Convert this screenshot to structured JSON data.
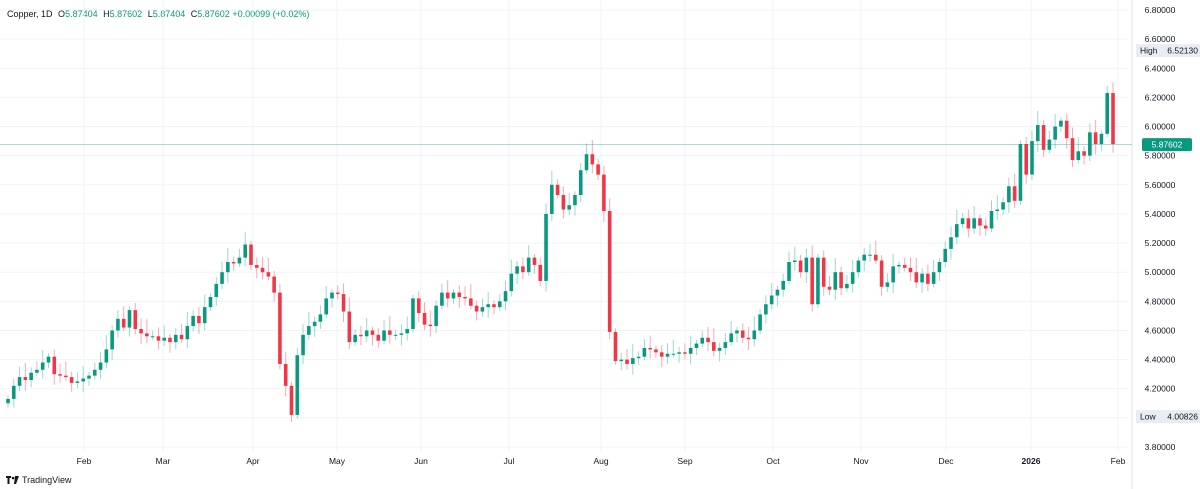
{
  "legend": {
    "symbol": "Copper, 1D",
    "open_label": "O",
    "open": "5.87404",
    "high_label": "H",
    "high": "5.87602",
    "low_label": "L",
    "low": "5.87404",
    "close_label": "C",
    "close": "5.87602",
    "change": "+0.00099 (+0.02%)"
  },
  "branding": "TradingView",
  "colors": {
    "up": "#089981",
    "down": "#f23645",
    "wick_up": "#9cd9c9",
    "wick_down": "#f7a9b0",
    "grid": "#f0f3fa",
    "price_line": "#089981",
    "marker_bg": "#e9ecf2"
  },
  "chart_data": {
    "type": "candlestick",
    "title": "Copper, 1D",
    "x_ticks": [
      "Feb",
      "Mar",
      "Apr",
      "May",
      "Jun",
      "Jul",
      "Aug",
      "Sep",
      "Oct",
      "Nov",
      "Dec",
      "2026",
      "Feb"
    ],
    "y_ticks": [
      "3.80000",
      "4.00000",
      "4.20000",
      "4.40000",
      "4.60000",
      "4.80000",
      "5.00000",
      "5.20000",
      "5.40000",
      "5.60000",
      "5.80000",
      "6.00000",
      "6.20000",
      "6.40000",
      "6.60000",
      "6.80000"
    ],
    "ylim": [
      3.78,
      6.83
    ],
    "grid": true,
    "high_marker": {
      "label": "High",
      "value": "6.52130"
    },
    "low_marker": {
      "label": "Low",
      "value": "4.00826"
    },
    "last_price": {
      "value": "5.87602",
      "level": 5.87602
    },
    "closes": [
      4.13,
      4.22,
      4.28,
      4.26,
      4.31,
      4.33,
      4.38,
      4.42,
      4.3,
      4.29,
      4.28,
      4.24,
      4.25,
      4.27,
      4.29,
      4.33,
      4.38,
      4.47,
      4.6,
      4.68,
      4.62,
      4.74,
      4.61,
      4.58,
      4.56,
      4.56,
      4.53,
      4.55,
      4.52,
      4.57,
      4.54,
      4.63,
      4.7,
      4.65,
      4.76,
      4.83,
      4.92,
      5.0,
      5.07,
      5.06,
      5.1,
      5.19,
      5.05,
      5.03,
      5.0,
      4.97,
      4.86,
      4.37,
      4.22,
      4.02,
      4.43,
      4.57,
      4.63,
      4.66,
      4.71,
      4.82,
      4.86,
      4.85,
      4.73,
      4.52,
      4.57,
      4.56,
      4.6,
      4.57,
      4.53,
      4.6,
      4.57,
      4.57,
      4.58,
      4.61,
      4.82,
      4.72,
      4.64,
      4.63,
      4.77,
      4.86,
      4.82,
      4.86,
      4.83,
      4.82,
      4.77,
      4.73,
      4.76,
      4.78,
      4.76,
      4.8,
      4.87,
      4.99,
      5.04,
      5.0,
      5.1,
      5.05,
      4.94,
      5.4,
      5.6,
      5.53,
      5.43,
      5.46,
      5.53,
      5.7,
      5.81,
      5.74,
      5.67,
      5.42,
      4.59,
      4.39,
      4.4,
      4.37,
      4.41,
      4.42,
      4.48,
      4.47,
      4.45,
      4.42,
      4.44,
      4.44,
      4.45,
      4.44,
      4.48,
      4.51,
      4.55,
      4.52,
      4.46,
      4.48,
      4.52,
      4.58,
      4.6,
      4.55,
      4.54,
      4.6,
      4.71,
      4.78,
      4.84,
      4.88,
      4.94,
      5.07,
      5.08,
      5.0,
      5.1,
      4.78,
      5.1,
      4.9,
      4.88,
      5.0,
      4.89,
      4.92,
      5.0,
      5.08,
      5.12,
      5.12,
      5.08,
      4.9,
      4.93,
      5.04,
      5.05,
      5.03,
      5.0,
      4.93,
      4.99,
      4.92,
      5.0,
      5.07,
      5.16,
      5.24,
      5.33,
      5.37,
      5.3,
      5.37,
      5.32,
      5.3,
      5.42,
      5.43,
      5.48,
      5.59,
      5.49,
      5.88,
      5.67,
      5.9,
      6.01,
      5.84,
      5.91,
      6.0,
      6.04,
      5.92,
      5.77,
      5.83,
      5.8,
      5.96,
      5.88,
      5.95,
      6.23,
      5.88
    ]
  }
}
